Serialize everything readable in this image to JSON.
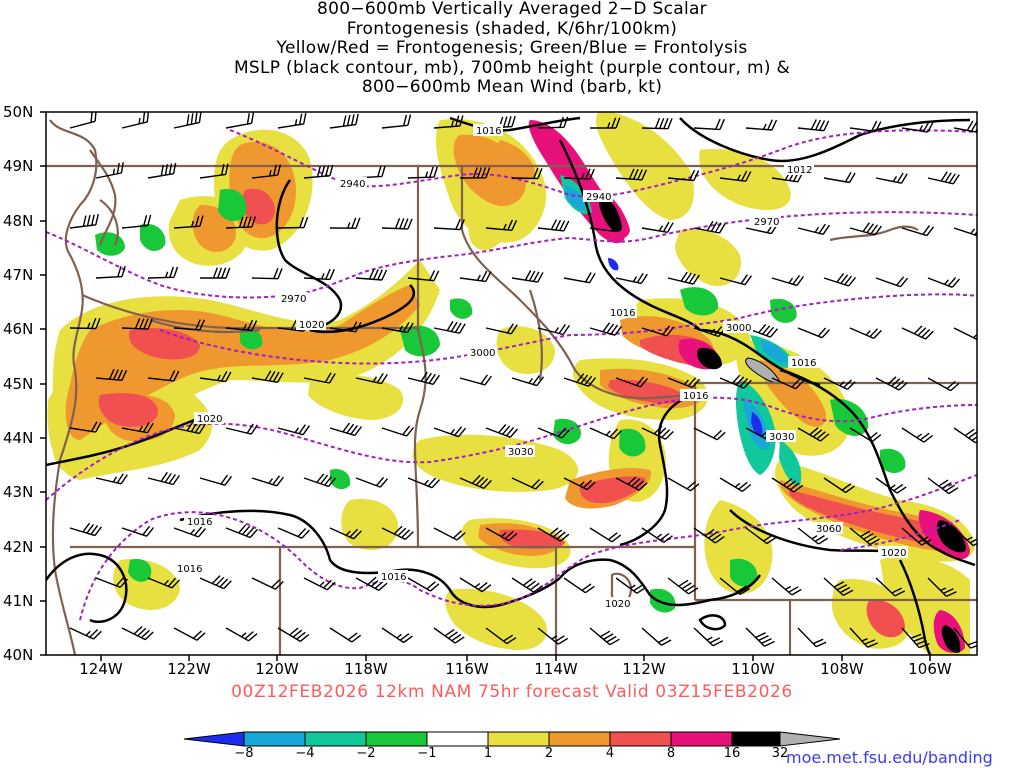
{
  "title_lines": [
    "800−600mb Vertically Averaged 2−D Scalar",
    "Frontogenesis (shaded, K/6hr/100km)",
    "Yellow/Red = Frontogenesis;  Green/Blue = Frontolysis",
    "MSLP (black contour, mb), 700mb height (purple contour, m) &",
    "800−600mb Mean Wind (barb, kt)"
  ],
  "lat_labels": [
    "50N",
    "49N",
    "48N",
    "47N",
    "46N",
    "45N",
    "44N",
    "43N",
    "42N",
    "41N",
    "40N"
  ],
  "lon_labels": [
    "124W",
    "122W",
    "120W",
    "118W",
    "116W",
    "114W",
    "112W",
    "110W",
    "108W",
    "106W"
  ],
  "valid_text": "00Z12FEB2026 12km NAM 75hr forecast Valid 03Z15FEB2026",
  "colorbar": {
    "labels": [
      "−8",
      "−4",
      "−2",
      "−1",
      "1",
      "2",
      "4",
      "8",
      "16",
      "32"
    ],
    "colors": [
      "#1e2cf0",
      "#17a7d8",
      "#10c89c",
      "#18c838",
      "#ffffff",
      "#e8e040",
      "#f09830",
      "#f05050",
      "#e8107a",
      "#000000",
      "#b0b0b0"
    ]
  },
  "mslp_contours": [
    "1016",
    "1012",
    "1020",
    "1016",
    "1016",
    "1020",
    "1016",
    "1016",
    "1016",
    "1016",
    "1020",
    "1020"
  ],
  "height_contours": [
    "2940",
    "2940",
    "2970",
    "2970",
    "3000",
    "3000",
    "3030",
    "3030",
    "3060"
  ],
  "colors": {
    "pressure_contour": "#000000",
    "height_contour": "#a020c0",
    "borders": "#806050",
    "valid_text": "#ff5a5a",
    "url": "#3a3aff"
  },
  "url": "moe.met.fsu.edu/banding"
}
